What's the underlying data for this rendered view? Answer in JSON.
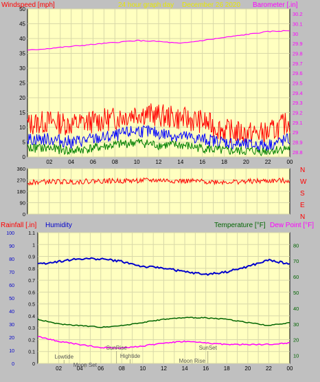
{
  "header": {
    "left": "Windspeed [mph]",
    "center": "24 hour graph day",
    "date": "December 26 2020",
    "right": "Barometer [.in]"
  },
  "colors": {
    "panel_bg": "#ffffc0",
    "page_bg": "#c0c0c0",
    "grid": "#d8d8a8",
    "wind_gust": "#ff0000",
    "wind_avg": "#0000ff",
    "wind_low": "#008000",
    "barometer": "#ff00ff",
    "direction": "#ff0000",
    "humidity": "#0000cc",
    "temperature": "#006400",
    "dew_point": "#ff00ff",
    "header_yellow": "#e8e800",
    "header_red": "#ff0000",
    "header_magenta": "#ff00ff"
  },
  "x_ticks": [
    "02",
    "04",
    "06",
    "08",
    "10",
    "12",
    "14",
    "16",
    "18",
    "20",
    "22",
    "00"
  ],
  "chart_data": [
    {
      "type": "line",
      "title": "24 hour graph day",
      "xlabel": "",
      "ylabel": "Windspeed [mph]",
      "ylim": [
        0,
        50
      ],
      "y_ticks": [
        0,
        5,
        10,
        15,
        20,
        25,
        30,
        35,
        40,
        45,
        50
      ],
      "y2label": "Barometer [.in]",
      "y2lim": [
        28.75,
        30.25
      ],
      "y2_ticks": [
        "28.8",
        "28.9",
        "29",
        "29.1",
        "29.2",
        "29.3",
        "29.4",
        "29.5",
        "29.6",
        "29.7",
        "29.8",
        "29.9",
        "30",
        "30.1",
        "30.2"
      ],
      "x_hours": [
        0,
        2,
        4,
        6,
        8,
        10,
        12,
        14,
        16,
        18,
        20,
        22,
        24
      ],
      "series": [
        {
          "name": "Windspeed [mph]",
          "role": "gust",
          "values": [
            11,
            12,
            11,
            12,
            13,
            15,
            14,
            13,
            12,
            9,
            8,
            8,
            12
          ]
        },
        {
          "name": "",
          "role": "average",
          "values": [
            6,
            6,
            5,
            6,
            7,
            9,
            8,
            7,
            6,
            5,
            4,
            4,
            6
          ]
        },
        {
          "name": "",
          "role": "low",
          "values": [
            3,
            3,
            2,
            3,
            4,
            5,
            4,
            4,
            3,
            2,
            2,
            2,
            3
          ]
        },
        {
          "name": "Barometer [.in]",
          "axis": "right",
          "values": [
            29.83,
            29.85,
            29.87,
            29.89,
            29.91,
            29.93,
            29.92,
            29.9,
            29.93,
            29.96,
            29.99,
            30.02,
            30.03
          ]
        }
      ]
    },
    {
      "type": "line",
      "title": "",
      "ylim": [
        0,
        360
      ],
      "y_ticks": [
        0,
        90,
        180,
        270,
        360
      ],
      "compass_labels": [
        "N",
        "W",
        "S",
        "E",
        "N"
      ],
      "x_hours": [
        0,
        2,
        4,
        6,
        8,
        10,
        12,
        14,
        16,
        18,
        20,
        22,
        24
      ],
      "series": [
        {
          "name": "",
          "values": [
            250,
            258,
            255,
            262,
            262,
            265,
            268,
            262,
            258,
            254,
            258,
            262,
            266
          ]
        }
      ]
    },
    {
      "type": "line",
      "title": "",
      "labels": {
        "rainfall": "Rainfall [.in]",
        "humidity": "Humidity",
        "temperature": "Temperature [°F]",
        "dew_point": "Dew Point [°F]"
      },
      "ylim_humidity": [
        0,
        100
      ],
      "humidity_ticks": [
        0,
        10,
        20,
        30,
        40,
        50,
        60,
        70,
        80,
        90,
        100
      ],
      "ylim_rain": [
        0,
        1.1
      ],
      "rain_ticks": [
        "0",
        "0.1",
        "0.2",
        "0.3",
        "0.4",
        "0.5",
        "0.6",
        "0.7",
        "0.8",
        "0.9",
        "1",
        "1.1"
      ],
      "ylim_temp": [
        5,
        88
      ],
      "temp_ticks": [
        10,
        20,
        30,
        40,
        50,
        60,
        70,
        80
      ],
      "x_hours": [
        0,
        2,
        4,
        6,
        8,
        10,
        12,
        14,
        16,
        18,
        20,
        22,
        24
      ],
      "series": [
        {
          "name": "Humidity",
          "axis": "humidity",
          "values": [
            76,
            78,
            80,
            80,
            78,
            74,
            73,
            70,
            68,
            70,
            74,
            79,
            76
          ]
        },
        {
          "name": "Temperature [°F]",
          "axis": "temp",
          "values": [
            33,
            30,
            29,
            28,
            29,
            31,
            33,
            34,
            34,
            33,
            31,
            29,
            31
          ]
        },
        {
          "name": "Dew Point [°F]",
          "axis": "temp",
          "values": [
            22,
            19,
            17,
            15,
            15,
            16,
            18,
            19,
            18,
            17,
            17,
            17,
            18
          ]
        }
      ],
      "events": [
        {
          "label": "Lowtide",
          "hour": 2.5
        },
        {
          "label": "Moon Set",
          "hour": 4.5
        },
        {
          "label": "SunRise",
          "hour": 7.5
        },
        {
          "label": "Hightide",
          "hour": 8.8
        },
        {
          "label": "Moon Rise",
          "hour": 14.7
        },
        {
          "label": "SunSet",
          "hour": 16.2
        }
      ]
    }
  ]
}
